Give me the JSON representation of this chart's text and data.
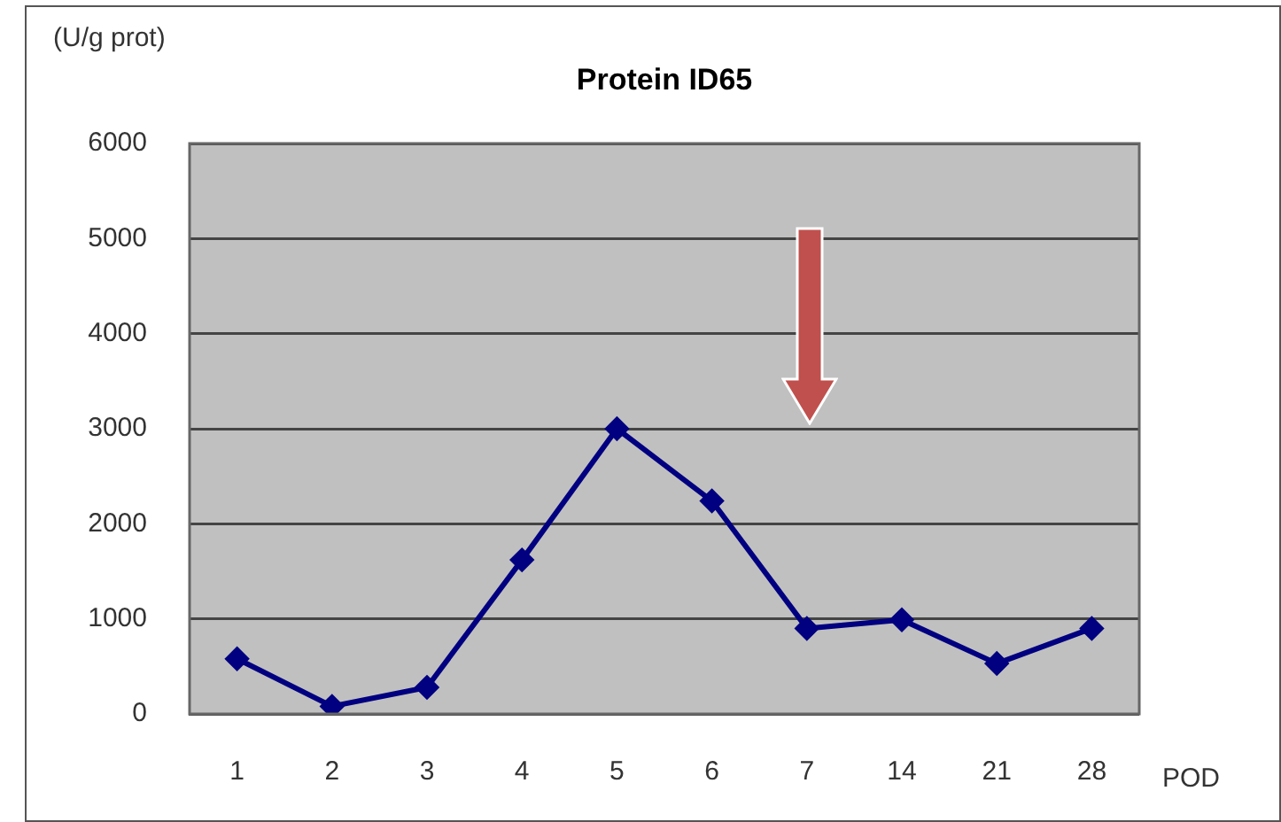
{
  "chart_data": {
    "type": "line",
    "title": "Protein ID65",
    "ylabel": "(U/g prot)",
    "xlabel": "POD",
    "categories": [
      "1",
      "2",
      "3",
      "4",
      "5",
      "6",
      "7",
      "14",
      "21",
      "28"
    ],
    "series": [
      {
        "color": "#000080",
        "values": [
          580,
          80,
          280,
          1620,
          3000,
          2240,
          900,
          990,
          530,
          900
        ]
      }
    ],
    "ylim": [
      0,
      6000
    ],
    "yticks": [
      0,
      1000,
      2000,
      3000,
      4000,
      5000,
      6000
    ],
    "grid": "y",
    "legend": false,
    "marker": "diamond",
    "line_style": "solid"
  }
}
